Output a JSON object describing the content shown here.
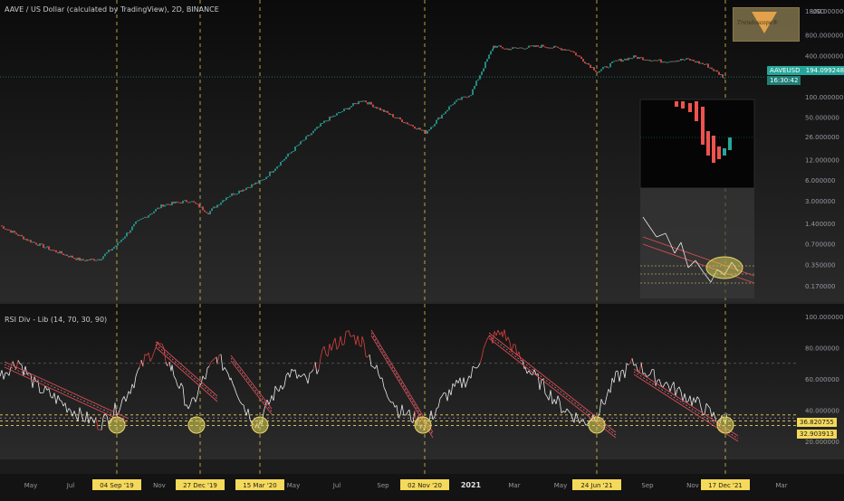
{
  "header": {
    "title": "AAVE / US Dollar (calculated by TradingView), 2D, BINANCE",
    "currency": "USD",
    "watermark_text": "Trendoscope®",
    "last_price": "194.099248",
    "countdown": "16:30:42",
    "symbol": "AAVEUSD"
  },
  "indicator": {
    "title": "RSI Div - Lib (14, 70, 30, 90)",
    "level_a": "36.820755",
    "level_b": "32.903913"
  },
  "chart_data": [
    {
      "type": "line",
      "title": "AAVE / US Dollar (calculated by TradingView), 2D, BINANCE",
      "yscale": "log",
      "y_ticks": [
        "1800.000000",
        "800.000000",
        "400.000000",
        "100.000000",
        "50.000000",
        "26.000000",
        "12.000000",
        "6.000000",
        "3.000000",
        "1.400000",
        "0.700000",
        "0.350000",
        "0.170000"
      ],
      "x_ticks": [
        "May",
        "Jul",
        "04 Sep '19",
        "Nov",
        "27 Dec '19",
        "15 Mar '20",
        "May",
        "Jul",
        "Sep",
        "02 Nov '20",
        "2021",
        "Mar",
        "May",
        "24 Jun '21",
        "Sep",
        "Nov",
        "17 Dec '21",
        "Mar"
      ],
      "highlighted_dates": [
        "04 Sep '19",
        "27 Dec '19",
        "15 Mar '20",
        "02 Nov '20",
        "24 Jun '21",
        "17 Dec '21"
      ],
      "series": [
        {
          "x_index": [
            0,
            30,
            60,
            90,
            110,
            130,
            150,
            180,
            210,
            230,
            250,
            290,
            330,
            360,
            400,
            430,
            470,
            500,
            520,
            545,
            560,
            600,
            630,
            660,
            680,
            700,
            730,
            760,
            780,
            800
          ],
          "values": [
            1.3,
            0.8,
            0.55,
            0.4,
            0.42,
            0.7,
            1.4,
            2.6,
            3.0,
            2.0,
            3.4,
            6.0,
            20,
            45,
            90,
            55,
            30,
            80,
            110,
            550,
            500,
            550,
            480,
            230,
            330,
            380,
            330,
            350,
            290,
            190
          ]
        }
      ],
      "last_value": 194.099248
    },
    {
      "type": "line",
      "title": "RSI Div - Lib (14, 70, 30, 90)",
      "y_ticks": [
        "100.000000",
        "80.000000",
        "60.000000",
        "40.000000",
        "20.000000"
      ],
      "ylim": [
        10,
        100
      ],
      "levels": [
        70,
        36.820755,
        32.903913,
        30
      ],
      "series": [
        {
          "x_index": [
            0,
            20,
            40,
            60,
            90,
            110,
            125,
            140,
            160,
            175,
            190,
            210,
            225,
            240,
            255,
            270,
            285,
            300,
            320,
            340,
            360,
            385,
            400,
            420,
            440,
            460,
            470,
            490,
            520,
            540,
            555,
            580,
            600,
            620,
            645,
            660,
            680,
            700,
            720,
            740,
            760,
            780,
            795,
            805
          ],
          "values": [
            62,
            72,
            55,
            48,
            36,
            31,
            38,
            50,
            72,
            82,
            66,
            40,
            60,
            74,
            62,
            42,
            30,
            48,
            64,
            58,
            78,
            88,
            84,
            60,
            40,
            34,
            30,
            48,
            62,
            85,
            90,
            68,
            55,
            42,
            32,
            38,
            60,
            70,
            62,
            55,
            48,
            40,
            32,
            36
          ]
        }
      ]
    }
  ]
}
